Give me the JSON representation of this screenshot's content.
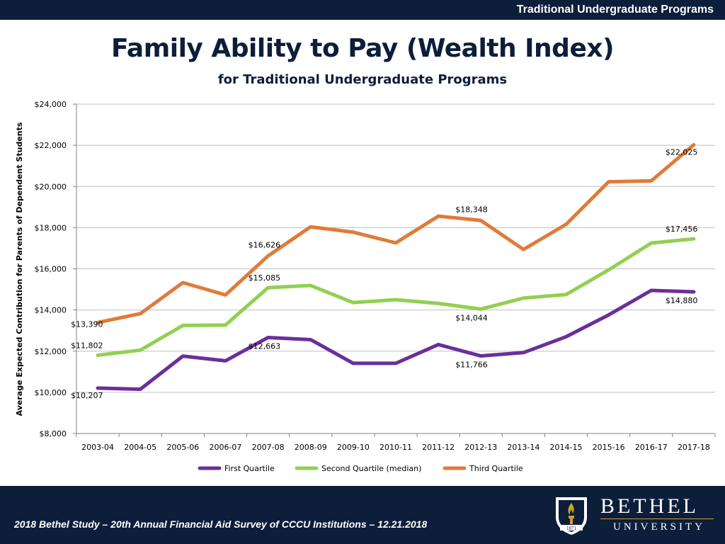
{
  "header": {
    "title": "Traditional Undergraduate Programs"
  },
  "slide": {
    "title": "Family Ability to Pay (Wealth Index)",
    "subtitle": "for Traditional Undergraduate Programs"
  },
  "footer": {
    "citation": "2018 Bethel Study – 20th Annual Financial Aid Survey of CCCU Institutions – 12.21.2018",
    "logo_name": "BETHEL",
    "logo_sub": "UNIVERSITY",
    "logo_year": "1871"
  },
  "colors": {
    "navy": "#0d1e3a",
    "first_quartile": "#6a2f9a",
    "second_quartile": "#92d050",
    "third_quartile": "#e07b39",
    "grid": "#bfbfbf"
  },
  "chart_data": {
    "type": "line",
    "title": "",
    "xlabel": "",
    "ylabel": "Average Expected Contribution for Parents of Dependent Students",
    "ylim": [
      8000,
      24000
    ],
    "y_ticks": [
      8000,
      10000,
      12000,
      14000,
      16000,
      18000,
      20000,
      22000,
      24000
    ],
    "y_tick_labels": [
      "$8,000",
      "$10,000",
      "$12,000",
      "$14,000",
      "$16,000",
      "$18,000",
      "$20,000",
      "$22,000",
      "$24,000"
    ],
    "grid": true,
    "legend_position": "bottom",
    "categories": [
      "2003-04",
      "2004-05",
      "2005-06",
      "2006-07",
      "2007-08",
      "2008-09",
      "2009-10",
      "2010-11",
      "2011-12",
      "2012-13",
      "2013-14",
      "2014-15",
      "2015-16",
      "2016-17",
      "2017-18"
    ],
    "series": [
      {
        "name": "First Quartile",
        "color": "#6a2f9a",
        "values": [
          10207,
          10150,
          11760,
          11530,
          12663,
          12560,
          11410,
          11410,
          12320,
          11766,
          11930,
          12700,
          13760,
          14950,
          14880
        ],
        "labels": [
          {
            "index": 0,
            "text": "$10,207"
          },
          {
            "index": 4,
            "text": "$12,663"
          },
          {
            "index": 9,
            "text": "$11,766"
          },
          {
            "index": 14,
            "text": "$14,880"
          }
        ]
      },
      {
        "name": "Second Quartile (median)",
        "color": "#92d050",
        "values": [
          11802,
          12050,
          13250,
          13270,
          15085,
          15190,
          14360,
          14500,
          14320,
          14044,
          14580,
          14750,
          15950,
          17250,
          17456
        ],
        "labels": [
          {
            "index": 0,
            "text": "$11,802"
          },
          {
            "index": 4,
            "text": "$15,085"
          },
          {
            "index": 9,
            "text": "$14,044"
          },
          {
            "index": 14,
            "text": "$17,456"
          }
        ]
      },
      {
        "name": "Third Quartile",
        "color": "#e07b39",
        "values": [
          13390,
          13820,
          15330,
          14730,
          16626,
          18040,
          17780,
          17260,
          18560,
          18348,
          16940,
          18160,
          20230,
          20270,
          22025
        ],
        "labels": [
          {
            "index": 0,
            "text": "$13,390"
          },
          {
            "index": 4,
            "text": "$16,626"
          },
          {
            "index": 9,
            "text": "$18,348"
          },
          {
            "index": 14,
            "text": "$22,025"
          }
        ]
      }
    ]
  }
}
